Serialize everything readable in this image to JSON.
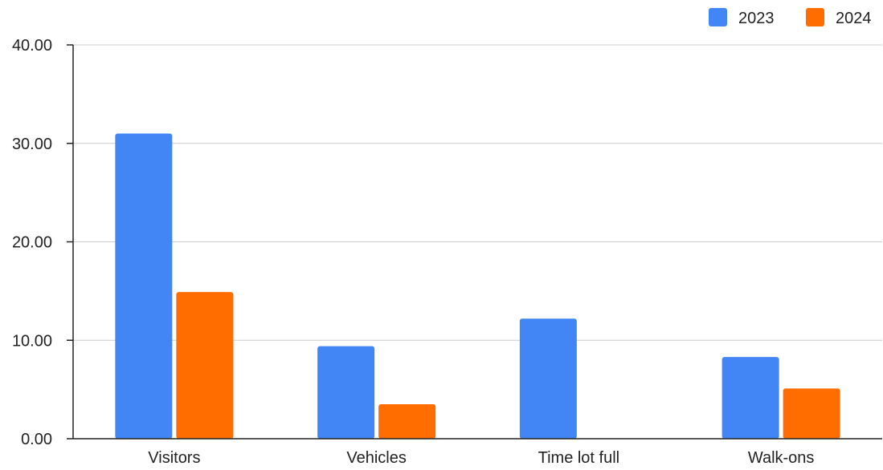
{
  "chart_data": {
    "type": "bar",
    "title": "",
    "xlabel": "",
    "ylabel": "",
    "categories": [
      "Visitors",
      "Vehicles",
      "Time lot full",
      "Walk-ons"
    ],
    "series": [
      {
        "name": "2023",
        "values": [
          31.0,
          9.4,
          12.2,
          8.3
        ]
      },
      {
        "name": "2024",
        "values": [
          14.9,
          3.5,
          0,
          5.1
        ]
      }
    ],
    "ylim": [
      0,
      40
    ],
    "yticks": [
      "0.00",
      "10.00",
      "20.00",
      "30.00",
      "40.00"
    ],
    "grid": true,
    "legend_position": "top-right",
    "colors": {
      "2023": "#4285f4",
      "2024": "#ff6d01",
      "grid": "#cccccc",
      "axis": "#222222"
    }
  }
}
